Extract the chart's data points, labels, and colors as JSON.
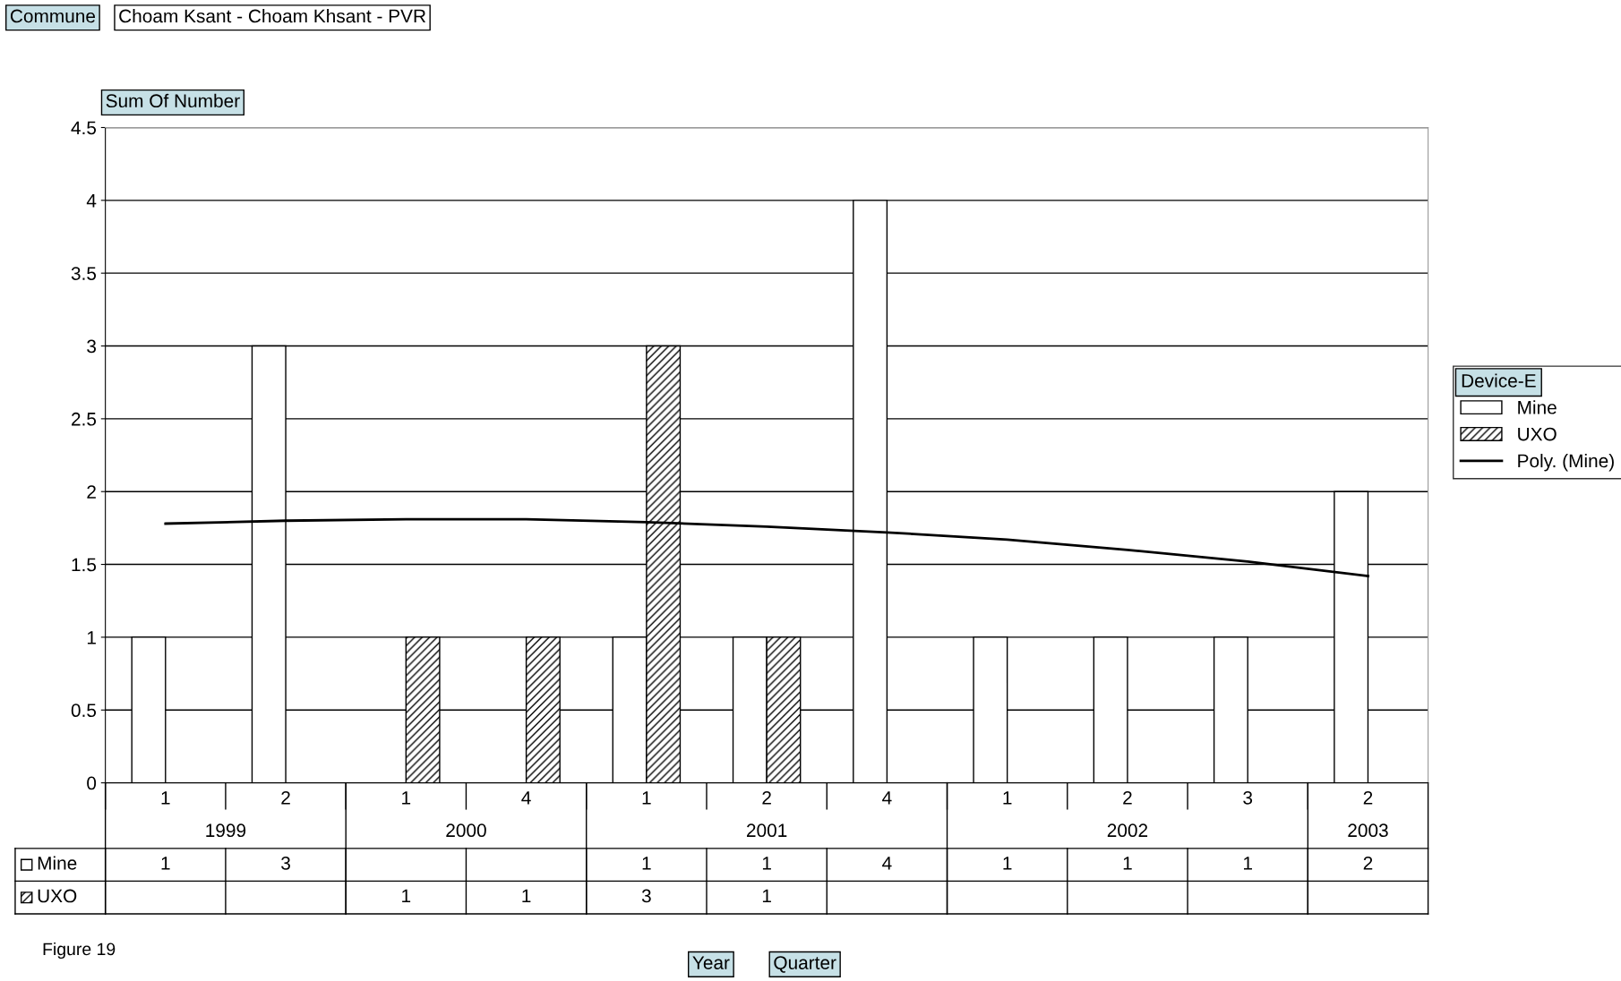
{
  "chart_data": {
    "type": "bar",
    "ylabel": "Sum Of Number",
    "legend_title": "Device-E",
    "categories": [
      "1",
      "2",
      "1",
      "4",
      "1",
      "2",
      "4",
      "1",
      "2",
      "3",
      "2"
    ],
    "series": [
      {
        "name": "Mine",
        "color": "#ffffff",
        "values": [
          1,
          3,
          null,
          null,
          1,
          1,
          4,
          1,
          1,
          1,
          2
        ],
        "value_labels": [
          "1",
          "3",
          null,
          null,
          "1",
          "1",
          "4",
          "1",
          "1",
          "1",
          "2"
        ]
      },
      {
        "name": "UXO",
        "color": "#000000",
        "values": [
          null,
          null,
          1,
          1,
          3,
          1,
          null,
          null,
          null,
          null,
          null
        ],
        "value_labels": [
          null,
          null,
          "1",
          "1",
          "3",
          "1",
          null,
          null,
          null,
          null,
          null
        ]
      },
      {
        "name": "Poly. (Mine)",
        "type": "line",
        "color": "#000000",
        "values": [
          1.78,
          1.8,
          1.81,
          1.81,
          1.79,
          1.76,
          1.72,
          1.67,
          1.6,
          1.52,
          1.42
        ]
      }
    ],
    "ylim": [
      0,
      4.5
    ],
    "yticks": [
      0,
      0.5,
      1,
      1.5,
      2,
      2.5,
      3,
      3.5,
      4,
      4.5
    ],
    "grid": "y",
    "legend": "right",
    "annotations": [
      "1999",
      "2000",
      "2001",
      "2002",
      "2003",
      "Commune",
      "Choam Ksant - Choam Khsant - PVR",
      "Figure 19",
      "Year",
      "Quarter"
    ]
  }
}
